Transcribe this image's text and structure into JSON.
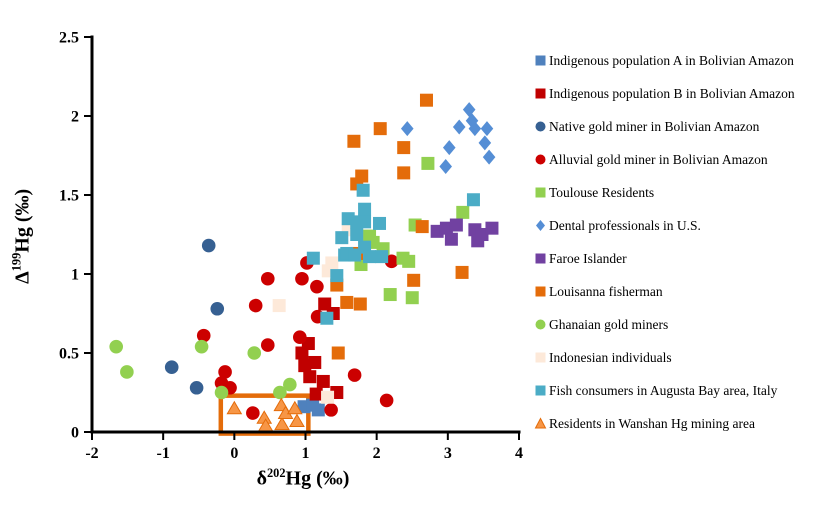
{
  "chart_data": {
    "type": "scatter",
    "title": "",
    "xlabel": {
      "symbol": "δ",
      "superscript": "202",
      "rest": "Hg (‰)"
    },
    "ylabel": {
      "symbol": "Δ",
      "superscript": "199",
      "rest": "Hg (‰)"
    },
    "xlim": [
      -2,
      4
    ],
    "ylim": [
      0,
      2.5
    ],
    "x_ticks": [
      -2,
      -1,
      0,
      1,
      2,
      3,
      4
    ],
    "y_ticks": [
      0,
      0.5,
      1,
      1.5,
      2,
      2.5
    ],
    "grid": false,
    "legend_position": "right",
    "axis_color": "#000000",
    "highlight_box": {
      "x": [
        -0.19,
        1.04
      ],
      "y": [
        -0.01,
        0.23
      ],
      "color": "#E46C0A"
    },
    "series": [
      {
        "name": "Indigenous population A in Bolivian Amazon",
        "marker": "square",
        "color": "#4F81BD",
        "points": [
          [
            0.98,
            0.16
          ],
          [
            1.1,
            0.17
          ],
          [
            1.18,
            0.14
          ]
        ]
      },
      {
        "name": "Indigenous population B in Bolivian Amazon",
        "marker": "square",
        "color": "#C00000",
        "points": [
          [
            1.27,
            0.81
          ],
          [
            1.39,
            0.75
          ],
          [
            1.04,
            0.56
          ],
          [
            0.95,
            0.5
          ],
          [
            1.13,
            0.44
          ],
          [
            0.99,
            0.42
          ],
          [
            1.06,
            0.35
          ],
          [
            1.25,
            0.32
          ],
          [
            1.15,
            0.24
          ],
          [
            1.44,
            0.25
          ]
        ]
      },
      {
        "name": "Native gold miner in Bolivian Amazon",
        "marker": "circle",
        "color": "#366092",
        "points": [
          [
            -0.36,
            1.18
          ],
          [
            -0.24,
            0.78
          ],
          [
            -0.88,
            0.41
          ],
          [
            -0.53,
            0.28
          ]
        ]
      },
      {
        "name": "Alluvial gold miner in Bolivian Amazon",
        "marker": "circle",
        "color": "#CC0000",
        "points": [
          [
            -0.43,
            0.61
          ],
          [
            -0.18,
            0.31
          ],
          [
            -0.13,
            0.38
          ],
          [
            -0.06,
            0.28
          ],
          [
            0.26,
            0.12
          ],
          [
            0.3,
            0.8
          ],
          [
            0.47,
            0.97
          ],
          [
            0.47,
            0.55
          ],
          [
            0.92,
            0.6
          ],
          [
            0.95,
            0.97
          ],
          [
            1.02,
            1.07
          ],
          [
            1.16,
            0.92
          ],
          [
            1.17,
            0.73
          ],
          [
            1.36,
            0.14
          ],
          [
            1.69,
            0.36
          ],
          [
            2.14,
            0.2
          ],
          [
            2.21,
            1.08
          ]
        ]
      },
      {
        "name": "Toulouse Residents",
        "marker": "square",
        "color": "#92D050",
        "points": [
          [
            1.78,
            1.06
          ],
          [
            1.9,
            1.24
          ],
          [
            1.95,
            1.2
          ],
          [
            2.09,
            1.16
          ],
          [
            2.19,
            0.87
          ],
          [
            2.37,
            1.1
          ],
          [
            2.45,
            1.08
          ],
          [
            2.5,
            0.85
          ],
          [
            2.54,
            1.31
          ],
          [
            2.72,
            1.7
          ],
          [
            3.21,
            1.39
          ]
        ]
      },
      {
        "name": "Dental professionals in U.S.",
        "marker": "diamond",
        "color": "#558ED5",
        "points": [
          [
            2.43,
            1.92
          ],
          [
            2.97,
            1.68
          ],
          [
            3.02,
            1.8
          ],
          [
            3.16,
            1.93
          ],
          [
            3.3,
            2.04
          ],
          [
            3.34,
            1.97
          ],
          [
            3.38,
            1.92
          ],
          [
            3.52,
            1.83
          ],
          [
            3.55,
            1.92
          ],
          [
            3.58,
            1.74
          ]
        ]
      },
      {
        "name": "Faroe Islander",
        "marker": "square",
        "color": "#7141A1",
        "points": [
          [
            2.85,
            1.27
          ],
          [
            2.98,
            1.29
          ],
          [
            3.05,
            1.22
          ],
          [
            3.12,
            1.31
          ],
          [
            3.38,
            1.28
          ],
          [
            3.42,
            1.21
          ],
          [
            3.48,
            1.25
          ],
          [
            3.62,
            1.29
          ]
        ]
      },
      {
        "name": "Louisanna fisherman",
        "marker": "square",
        "color": "#E46C0A",
        "points": [
          [
            1.44,
            0.93
          ],
          [
            1.46,
            0.5
          ],
          [
            1.58,
            0.82
          ],
          [
            1.68,
            1.84
          ],
          [
            1.72,
            1.57
          ],
          [
            1.72,
            1.13
          ],
          [
            1.77,
            0.81
          ],
          [
            1.79,
            1.62
          ],
          [
            2.05,
            1.92
          ],
          [
            2.38,
            1.8
          ],
          [
            2.38,
            1.64
          ],
          [
            2.52,
            0.96
          ],
          [
            2.64,
            1.3
          ],
          [
            2.7,
            2.1
          ],
          [
            3.2,
            1.01
          ]
        ]
      },
      {
        "name": "Ghanaian gold miners",
        "marker": "circle",
        "color": "#92D050",
        "points": [
          [
            -1.66,
            0.54
          ],
          [
            -1.51,
            0.38
          ],
          [
            -0.46,
            0.54
          ],
          [
            -0.18,
            0.25
          ],
          [
            0.28,
            0.5
          ],
          [
            0.64,
            0.25
          ],
          [
            0.78,
            0.3
          ]
        ]
      },
      {
        "name": "Indonesian individuals",
        "marker": "square",
        "color": "#FDE9D9",
        "points": [
          [
            0.63,
            0.8
          ],
          [
            1.31,
            0.22
          ],
          [
            1.32,
            1.02
          ],
          [
            1.37,
            1.07
          ],
          [
            1.6,
            1.28
          ]
        ]
      },
      {
        "name": "Fish consumers in Augusta Bay area, Italy",
        "marker": "square",
        "color": "#4BACC6",
        "points": [
          [
            1.11,
            1.1
          ],
          [
            1.3,
            0.72
          ],
          [
            1.44,
            0.99
          ],
          [
            1.51,
            1.23
          ],
          [
            1.55,
            1.12
          ],
          [
            1.58,
            1.13
          ],
          [
            1.6,
            1.35
          ],
          [
            1.69,
            1.12
          ],
          [
            1.72,
            1.33
          ],
          [
            1.72,
            1.25
          ],
          [
            1.81,
            1.53
          ],
          [
            1.83,
            1.41
          ],
          [
            1.83,
            1.33
          ],
          [
            1.83,
            1.17
          ],
          [
            1.9,
            1.11
          ],
          [
            2.04,
            1.32
          ],
          [
            2.07,
            1.11
          ],
          [
            3.36,
            1.47
          ]
        ]
      },
      {
        "name": "Residents in Wanshan Hg mining area",
        "marker": "triangle",
        "color": "#F79646",
        "stroke": "#E46C0A",
        "points": [
          [
            0.0,
            0.15
          ],
          [
            0.42,
            0.09
          ],
          [
            0.44,
            0.04
          ],
          [
            0.66,
            0.17
          ],
          [
            0.67,
            0.05
          ],
          [
            0.72,
            0.12
          ],
          [
            0.85,
            0.15
          ],
          [
            0.88,
            0.07
          ]
        ]
      }
    ]
  }
}
